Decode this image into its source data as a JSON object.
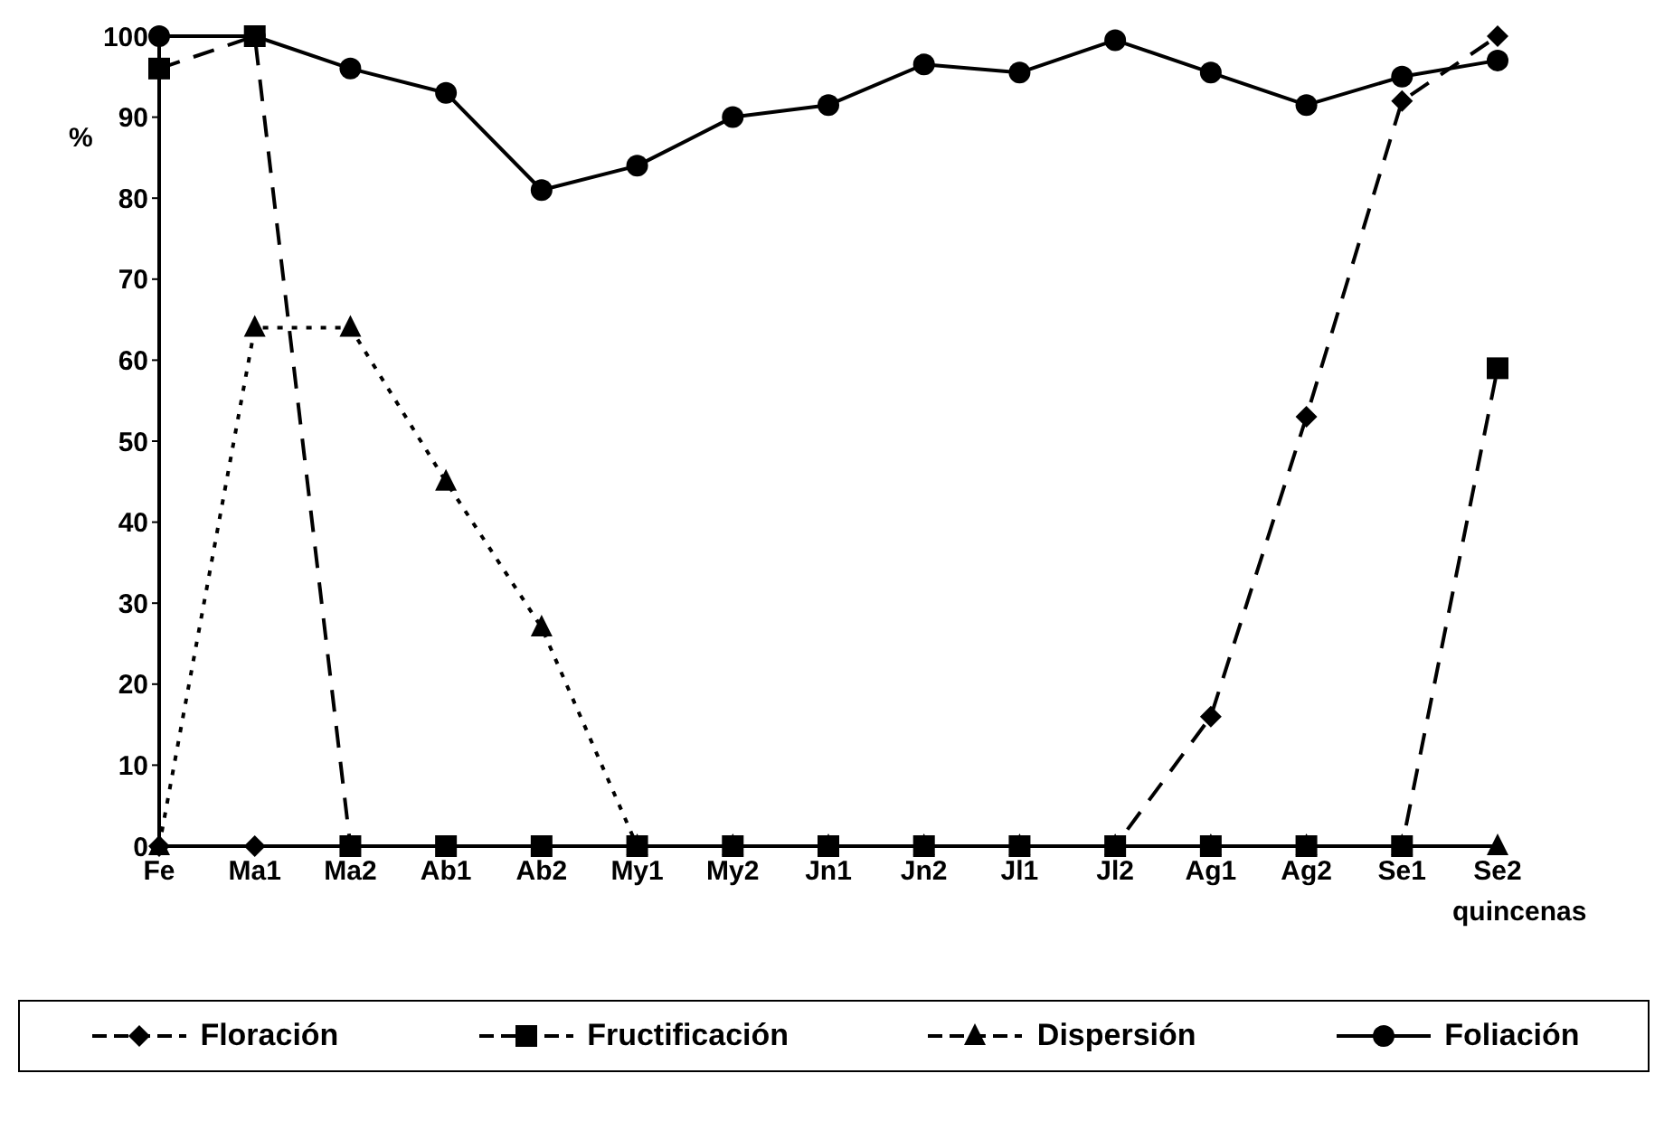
{
  "chart_data": {
    "type": "line",
    "ylabel": "%",
    "xlabel": "quincenas",
    "categories": [
      "Fe",
      "Ma1",
      "Ma2",
      "Ab1",
      "Ab2",
      "My1",
      "My2",
      "Jn1",
      "Jn2",
      "Jl1",
      "Jl2",
      "Ag1",
      "Ag2",
      "Se1",
      "Se2"
    ],
    "ylim": [
      0,
      100
    ],
    "yticks": [
      0,
      10,
      20,
      30,
      40,
      50,
      60,
      70,
      80,
      90,
      100
    ],
    "legend": "bottom",
    "series": [
      {
        "name": "Floración",
        "color": "#000000",
        "marker": "diamond",
        "line_style": "dashed",
        "values": [
          0,
          0,
          0,
          0,
          0,
          0,
          0,
          0,
          0,
          0,
          0,
          16,
          53,
          92,
          100
        ]
      },
      {
        "name": "Fructificación",
        "color": "#000000",
        "marker": "square",
        "line_style": "dashed",
        "values": [
          96,
          100,
          0,
          0,
          0,
          0,
          0,
          0,
          0,
          0,
          0,
          0,
          0,
          0,
          59
        ]
      },
      {
        "name": "Dispersión",
        "color": "#000000",
        "marker": "triangle",
        "line_style": "dotted",
        "values": [
          0,
          64,
          64,
          45,
          27,
          0,
          0,
          0,
          0,
          0,
          0,
          0,
          0,
          0,
          0
        ]
      },
      {
        "name": "Foliación",
        "color": "#000000",
        "marker": "circle",
        "line_style": "solid",
        "values": [
          100,
          100,
          96,
          93,
          81,
          84,
          90,
          91.5,
          96.5,
          95.5,
          99.5,
          95.5,
          91.5,
          95,
          97
        ]
      }
    ]
  }
}
